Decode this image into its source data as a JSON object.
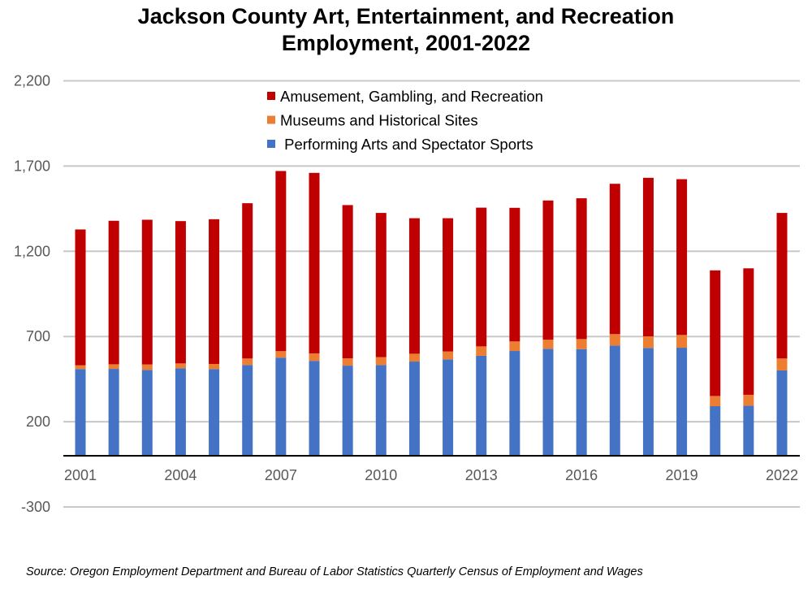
{
  "chart_data": {
    "type": "bar",
    "stacked": true,
    "title": "Jackson County Art, Entertainment, and Recreation Employment, 2001-2022",
    "title_lines": [
      "Jackson County Art, Entertainment, and Recreation",
      "Employment, 2001-2022"
    ],
    "xlabel": "",
    "ylabel": "",
    "ylim": [
      -300,
      2200
    ],
    "y_ticks": [
      -300,
      200,
      700,
      1200,
      1700,
      2200
    ],
    "y_tick_labels": [
      "-300",
      "200",
      "700",
      "1,200",
      "1,700",
      "2,200"
    ],
    "x_tick_labels": [
      "2001",
      "2004",
      "2007",
      "2010",
      "2013",
      "2016",
      "2019",
      "2022"
    ],
    "grid": true,
    "legend_position": "top-center",
    "categories": [
      "2001",
      "2002",
      "2003",
      "2004",
      "2005",
      "2006",
      "2007",
      "2008",
      "2009",
      "2010",
      "2011",
      "2012",
      "2013",
      "2014",
      "2015",
      "2016",
      "2017",
      "2018",
      "2019",
      "2020",
      "2021",
      "2022"
    ],
    "series": [
      {
        "name": " Performing Arts and Spectator Sports",
        "color": "#4472C4",
        "values": [
          509,
          510,
          504,
          514,
          509,
          533,
          576,
          557,
          529,
          533,
          553,
          566,
          587,
          615,
          628,
          626,
          647,
          633,
          634,
          291,
          294,
          501
        ]
      },
      {
        "name": "Museums and Historical Sites",
        "color": "#ED7D31",
        "values": [
          22,
          27,
          32,
          28,
          30,
          38,
          38,
          44,
          43,
          46,
          46,
          46,
          55,
          56,
          53,
          59,
          67,
          68,
          75,
          60,
          64,
          70
        ]
      },
      {
        "name": "Amusement, Gambling, and Recreation",
        "color": "#C00000",
        "values": [
          797,
          842,
          849,
          835,
          849,
          911,
          1057,
          1059,
          899,
          846,
          795,
          782,
          814,
          784,
          817,
          826,
          882,
          930,
          914,
          737,
          742,
          854
        ]
      }
    ],
    "legend_order": [
      2,
      1,
      0
    ]
  },
  "source": "Source: Oregon Employment Department and Bureau of Labor Statistics Quarterly Census of Employment and Wages"
}
